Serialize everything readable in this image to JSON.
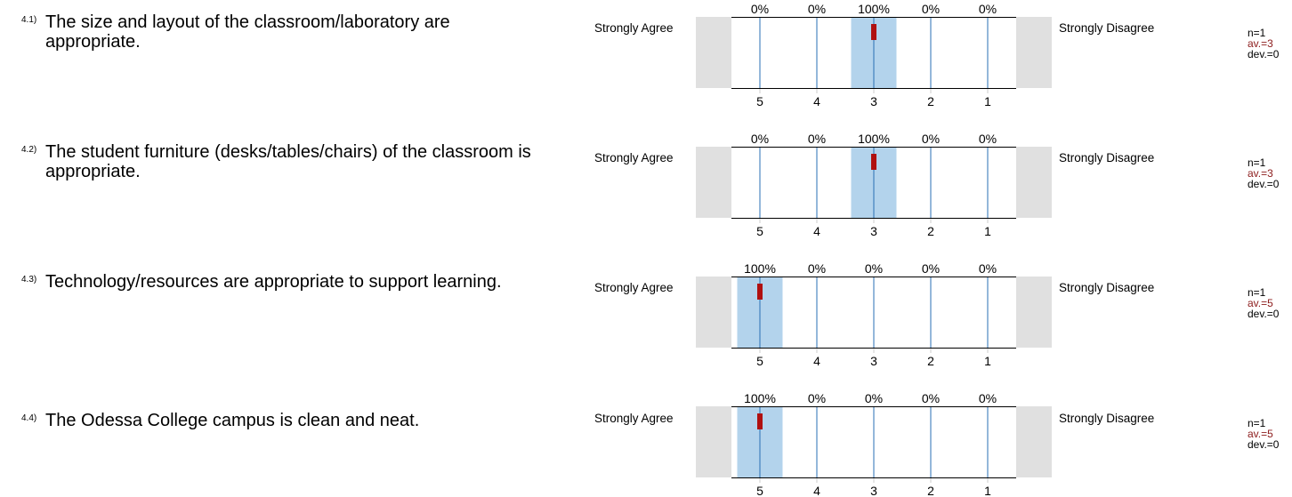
{
  "colors": {
    "bar": "#b3d3ec",
    "gray_box": "#e0e0e0",
    "tick_line": "#2a6fb5",
    "mean_marker": "#b01010",
    "average_text": "#8b1a1a"
  },
  "chart_data": [
    {
      "type": "bar",
      "number": "4.1)",
      "question": "The size and layout of the classroom/laboratory are appropriate.",
      "left_label": "Strongly Agree",
      "right_label": "Strongly Disagree",
      "categories": [
        "5",
        "4",
        "3",
        "2",
        "1"
      ],
      "values": [
        0,
        0,
        100,
        0,
        0
      ],
      "value_labels": [
        "0%",
        "0%",
        "100%",
        "0%",
        "0%"
      ],
      "mean": 3,
      "n_label": "n=1",
      "av_label": "av.=3",
      "dev_label": "dev.=0"
    },
    {
      "type": "bar",
      "number": "4.2)",
      "question": "The student furniture (desks/tables/chairs) of the classroom is appropriate.",
      "left_label": "Strongly Agree",
      "right_label": "Strongly Disagree",
      "categories": [
        "5",
        "4",
        "3",
        "2",
        "1"
      ],
      "values": [
        0,
        0,
        100,
        0,
        0
      ],
      "value_labels": [
        "0%",
        "0%",
        "100%",
        "0%",
        "0%"
      ],
      "mean": 3,
      "n_label": "n=1",
      "av_label": "av.=3",
      "dev_label": "dev.=0"
    },
    {
      "type": "bar",
      "number": "4.3)",
      "question": "Technology/resources are appropriate to support learning.",
      "left_label": "Strongly Agree",
      "right_label": "Strongly Disagree",
      "categories": [
        "5",
        "4",
        "3",
        "2",
        "1"
      ],
      "values": [
        100,
        0,
        0,
        0,
        0
      ],
      "value_labels": [
        "100%",
        "0%",
        "0%",
        "0%",
        "0%"
      ],
      "mean": 5,
      "n_label": "n=1",
      "av_label": "av.=5",
      "dev_label": "dev.=0"
    },
    {
      "type": "bar",
      "number": "4.4)",
      "question": "The Odessa College campus is clean and neat.",
      "left_label": "Strongly Agree",
      "right_label": "Strongly Disagree",
      "categories": [
        "5",
        "4",
        "3",
        "2",
        "1"
      ],
      "values": [
        100,
        0,
        0,
        0,
        0
      ],
      "value_labels": [
        "100%",
        "0%",
        "0%",
        "0%",
        "0%"
      ],
      "mean": 5,
      "n_label": "n=1",
      "av_label": "av.=5",
      "dev_label": "dev.=0"
    }
  ]
}
